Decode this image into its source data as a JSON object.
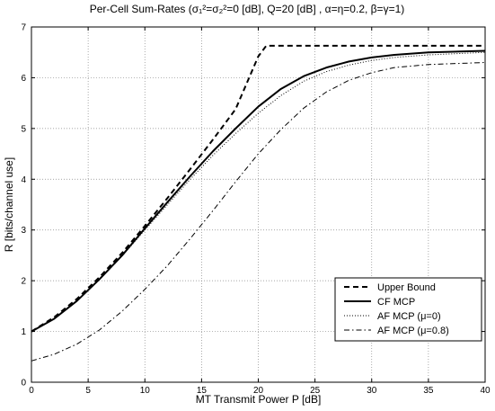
{
  "chart_data": {
    "type": "line",
    "title": "Per-Cell Sum-Rates (σ₁²=σ₂²=0 [dB], Q=20 [dB] , α=η=0.2, β=γ=1)",
    "xlabel": "MT Transmit Power P [dB]",
    "ylabel": "R [bits/channel use]",
    "xlim": [
      0,
      40
    ],
    "ylim": [
      0,
      7
    ],
    "xticks": [
      "0",
      "5",
      "10",
      "15",
      "20",
      "25",
      "30",
      "35",
      "40"
    ],
    "yticks": [
      "0",
      "1",
      "2",
      "3",
      "4",
      "5",
      "6",
      "7"
    ],
    "grid": true,
    "legend_position": "lower-right",
    "series": [
      {
        "name": "Upper Bound",
        "style": "dashed",
        "x": [
          0,
          2,
          4,
          6,
          8,
          10,
          12,
          14,
          16,
          18,
          20,
          20.7,
          22,
          25,
          30,
          35,
          40
        ],
        "y": [
          1.0,
          1.28,
          1.64,
          2.07,
          2.55,
          3.08,
          3.63,
          4.2,
          4.78,
          5.38,
          6.42,
          6.63,
          6.63,
          6.63,
          6.63,
          6.63,
          6.63
        ]
      },
      {
        "name": "CF MCP",
        "style": "solid",
        "x": [
          0,
          2,
          4,
          6,
          8,
          10,
          12,
          14,
          16,
          18,
          20,
          22,
          24,
          26,
          28,
          30,
          32,
          35,
          40
        ],
        "y": [
          1.0,
          1.25,
          1.6,
          2.03,
          2.5,
          3.03,
          3.55,
          4.06,
          4.55,
          5.0,
          5.43,
          5.78,
          6.03,
          6.2,
          6.32,
          6.4,
          6.45,
          6.5,
          6.53
        ]
      },
      {
        "name": "AF MCP (μ=0)",
        "style": "dotted",
        "x": [
          0,
          2,
          4,
          6,
          8,
          10,
          12,
          14,
          16,
          18,
          20,
          22,
          24,
          26,
          28,
          30,
          32,
          35,
          40
        ],
        "y": [
          1.0,
          1.25,
          1.6,
          2.02,
          2.49,
          3.0,
          3.5,
          4.0,
          4.47,
          4.9,
          5.3,
          5.65,
          5.93,
          6.12,
          6.25,
          6.34,
          6.4,
          6.45,
          6.5
        ]
      },
      {
        "name": "AF MCP (μ=0.8)",
        "style": "dashdot",
        "x": [
          0,
          2,
          4,
          6,
          8,
          10,
          12,
          14,
          16,
          18,
          20,
          22,
          24,
          26,
          28,
          30,
          32,
          35,
          40
        ],
        "y": [
          0.42,
          0.55,
          0.75,
          1.03,
          1.4,
          1.83,
          2.3,
          2.83,
          3.38,
          3.95,
          4.5,
          4.98,
          5.4,
          5.72,
          5.95,
          6.1,
          6.2,
          6.26,
          6.3
        ]
      }
    ]
  }
}
